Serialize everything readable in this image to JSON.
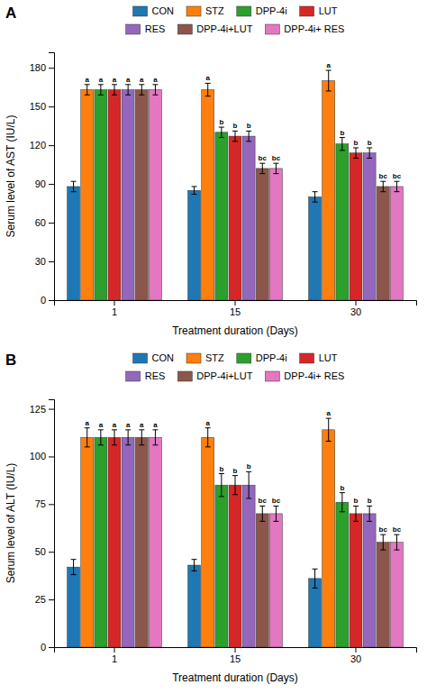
{
  "chart_data": [
    {
      "type": "bar",
      "title": "A",
      "xlabel": "Treatment duration (Days)",
      "ylabel": "Serum level of AST (IU/L)",
      "categories": [
        "1",
        "15",
        "30"
      ],
      "series": [
        {
          "name": "CON",
          "values": [
            88,
            85,
            80
          ],
          "errors": [
            4,
            3,
            4
          ]
        },
        {
          "name": "STZ",
          "values": [
            163,
            163,
            170
          ],
          "errors": [
            4,
            5,
            8
          ],
          "annotations": [
            "a",
            "a",
            "a"
          ]
        },
        {
          "name": "DPP-4i",
          "values": [
            163,
            130,
            121
          ],
          "errors": [
            4,
            4,
            5
          ],
          "annotations": [
            "a",
            "b",
            "b"
          ]
        },
        {
          "name": "LUT",
          "values": [
            163,
            127,
            114
          ],
          "errors": [
            4,
            4,
            4
          ],
          "annotations": [
            "a",
            "b",
            "b"
          ]
        },
        {
          "name": "RES",
          "values": [
            163,
            127,
            114
          ],
          "errors": [
            4,
            4,
            4
          ],
          "annotations": [
            "a",
            "b",
            "b"
          ]
        },
        {
          "name": "DPP-4i+LUT",
          "values": [
            163,
            102,
            88
          ],
          "errors": [
            4,
            4,
            4
          ],
          "annotations": [
            "a",
            "bc",
            "bc"
          ]
        },
        {
          "name": "DPP-4i+ RES",
          "values": [
            163,
            102,
            88
          ],
          "errors": [
            4,
            4,
            4
          ],
          "annotations": [
            "a",
            "bc",
            "bc"
          ]
        }
      ],
      "ylim": [
        0,
        192
      ],
      "yticks": [
        0,
        30,
        60,
        90,
        120,
        150,
        180
      ],
      "grid": false,
      "legend": "top"
    },
    {
      "type": "bar",
      "title": "B",
      "xlabel": "Treatment duration (Days)",
      "ylabel": "Serum level of ALT (IU/L)",
      "categories": [
        "1",
        "15",
        "30"
      ],
      "series": [
        {
          "name": "CON",
          "values": [
            42,
            43,
            36
          ],
          "errors": [
            4,
            3,
            5
          ]
        },
        {
          "name": "STZ",
          "values": [
            110,
            110,
            114
          ],
          "errors": [
            5,
            5,
            6
          ],
          "annotations": [
            "a",
            "a",
            "a"
          ]
        },
        {
          "name": "DPP-4i",
          "values": [
            110,
            85,
            76
          ],
          "errors": [
            4,
            6,
            5
          ],
          "annotations": [
            "a",
            "b",
            "b"
          ]
        },
        {
          "name": "LUT",
          "values": [
            110,
            85,
            70
          ],
          "errors": [
            4,
            5,
            4
          ],
          "annotations": [
            "a",
            "b",
            "b"
          ]
        },
        {
          "name": "RES",
          "values": [
            110,
            85,
            70
          ],
          "errors": [
            4,
            7,
            4
          ],
          "annotations": [
            "a",
            "b",
            "b"
          ]
        },
        {
          "name": "DPP-4i+LUT",
          "values": [
            110,
            70,
            55
          ],
          "errors": [
            4,
            4,
            4
          ],
          "annotations": [
            "a",
            "bc",
            "bc"
          ]
        },
        {
          "name": "DPP-4i+ RES",
          "values": [
            110,
            70,
            55
          ],
          "errors": [
            4,
            4,
            4
          ],
          "annotations": [
            "a",
            "bc",
            "bc"
          ]
        }
      ],
      "ylim": [
        0,
        130
      ],
      "yticks": [
        0,
        25,
        50,
        75,
        100,
        125
      ],
      "grid": false,
      "legend": "top"
    }
  ]
}
